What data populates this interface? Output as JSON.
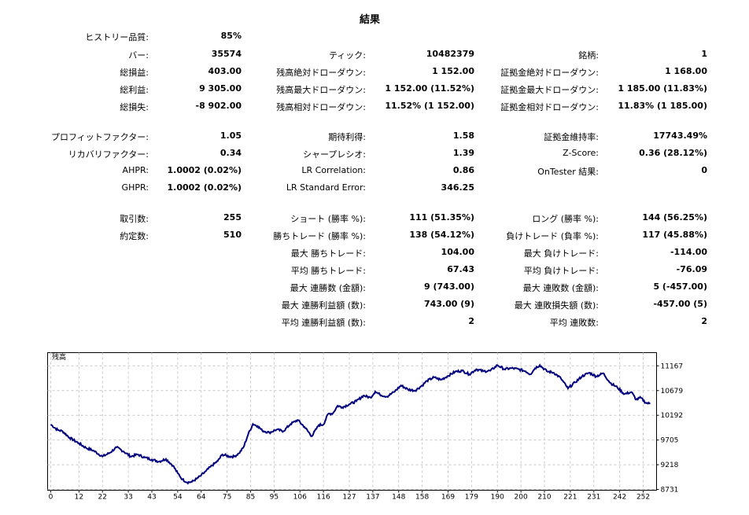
{
  "report": {
    "title": "結果",
    "col1": [
      {
        "label": "ヒストリー品質:",
        "value": "85%",
        "row": 0
      },
      {
        "label": "バー:",
        "value": "35574",
        "row": 1
      },
      {
        "label": "総損益:",
        "value": "403.00",
        "row": 2
      },
      {
        "label": "総利益:",
        "value": "9 305.00",
        "row": 3
      },
      {
        "label": "総損失:",
        "value": "-8 902.00",
        "row": 4
      },
      {
        "label": "プロフィットファクター:",
        "value": "1.05",
        "row": 5
      },
      {
        "label": "リカバリファクター:",
        "value": "0.34",
        "row": 6
      },
      {
        "label": "AHPR:",
        "value": "1.0002 (0.02%)",
        "row": 7
      },
      {
        "label": "GHPR:",
        "value": "1.0002 (0.02%)",
        "row": 8
      },
      {
        "label": "取引数:",
        "value": "255",
        "row": 9
      },
      {
        "label": "約定数:",
        "value": "510",
        "row": 10
      }
    ],
    "col2": [
      {
        "label": "ティック:",
        "value": "10482379",
        "row": 1
      },
      {
        "label": "残高絶対ドローダウン:",
        "value": "1 152.00",
        "row": 2
      },
      {
        "label": "残高最大ドローダウン:",
        "value": "1 152.00 (11.52%)",
        "row": 3
      },
      {
        "label": "残高相対ドローダウン:",
        "value": "11.52% (1 152.00)",
        "row": 4
      },
      {
        "label": "期待利得:",
        "value": "1.58",
        "row": 5
      },
      {
        "label": "シャープレシオ:",
        "value": "1.39",
        "row": 6
      },
      {
        "label": "LR Correlation:",
        "value": "0.86",
        "row": 7
      },
      {
        "label": "LR Standard Error:",
        "value": "346.25",
        "row": 8
      },
      {
        "label": "ショート (勝率 %):",
        "value": "111 (51.35%)",
        "row": 9
      },
      {
        "label": "勝ちトレード (勝率 %):",
        "value": "138 (54.12%)",
        "row": 10
      },
      {
        "label": "最大 勝ちトレード:",
        "value": "104.00",
        "row": 11
      },
      {
        "label": "平均 勝ちトレード:",
        "value": "67.43",
        "row": 12
      },
      {
        "label": "最大 連勝数 (金額):",
        "value": "9 (743.00)",
        "row": 13
      },
      {
        "label": "最大 連勝利益額 (数):",
        "value": "743.00 (9)",
        "row": 14
      },
      {
        "label": "平均 連勝利益額 (数):",
        "value": "2",
        "row": 15
      }
    ],
    "col3": [
      {
        "label": "銘柄:",
        "value": "1",
        "row": 1
      },
      {
        "label": "証拠金絶対ドローダウン:",
        "value": "1 168.00",
        "row": 2
      },
      {
        "label": "証拠金最大ドローダウン:",
        "value": "1 185.00 (11.83%)",
        "row": 3
      },
      {
        "label": "証拠金相対ドローダウン:",
        "value": "11.83% (1 185.00)",
        "row": 4
      },
      {
        "label": "証拠金維持率:",
        "value": "17743.49%",
        "row": 5
      },
      {
        "label": "Z-Score:",
        "value": "0.36 (28.12%)",
        "row": 6
      },
      {
        "label": "OnTester 結果:",
        "value": "0",
        "row": 7
      },
      {
        "label": "ロング (勝率 %):",
        "value": "144 (56.25%)",
        "row": 9
      },
      {
        "label": "負けトレード (負率 %):",
        "value": "117 (45.88%)",
        "row": 10
      },
      {
        "label": "最大 負けトレード:",
        "value": "-114.00",
        "row": 11
      },
      {
        "label": "平均 負けトレード:",
        "value": "-76.09",
        "row": 12
      },
      {
        "label": "最大 連敗数 (金額):",
        "value": "5 (-457.00)",
        "row": 13
      },
      {
        "label": "最大 連敗損失額 (数):",
        "value": "-457.00 (5)",
        "row": 14
      },
      {
        "label": "平均 連敗数:",
        "value": "2",
        "row": 15
      }
    ]
  },
  "chart_data": {
    "type": "line",
    "title": "残高",
    "line_color": "#00007f",
    "grid": true,
    "xlim": [
      0,
      255
    ],
    "ylim": [
      8731,
      11411
    ],
    "x_ticks": [
      "0",
      "12",
      "22",
      "33",
      "43",
      "54",
      "64",
      "75",
      "85",
      "95",
      "106",
      "116",
      "127",
      "137",
      "148",
      "158",
      "169",
      "179",
      "190",
      "200",
      "210",
      "221",
      "231",
      "242",
      "252"
    ],
    "y_ticks": [
      "11167",
      "10679",
      "10192",
      "9705",
      "9218",
      "8731"
    ],
    "keypoints": [
      [
        0,
        10010
      ],
      [
        3,
        9900
      ],
      [
        5,
        9880
      ],
      [
        8,
        9750
      ],
      [
        12,
        9640
      ],
      [
        15,
        9550
      ],
      [
        18,
        9500
      ],
      [
        22,
        9380
      ],
      [
        25,
        9450
      ],
      [
        28,
        9560
      ],
      [
        31,
        9480
      ],
      [
        34,
        9380
      ],
      [
        37,
        9420
      ],
      [
        40,
        9360
      ],
      [
        43,
        9320
      ],
      [
        46,
        9280
      ],
      [
        49,
        9330
      ],
      [
        52,
        9200
      ],
      [
        54,
        9050
      ],
      [
        56,
        8930
      ],
      [
        58,
        8870
      ],
      [
        60,
        8880
      ],
      [
        62,
        8940
      ],
      [
        64,
        9010
      ],
      [
        66,
        9090
      ],
      [
        68,
        9180
      ],
      [
        71,
        9290
      ],
      [
        73,
        9420
      ],
      [
        76,
        9380
      ],
      [
        78,
        9380
      ],
      [
        80,
        9440
      ],
      [
        82,
        9560
      ],
      [
        84,
        9820
      ],
      [
        86,
        10020
      ],
      [
        88,
        9980
      ],
      [
        90,
        9890
      ],
      [
        93,
        9850
      ],
      [
        96,
        9910
      ],
      [
        99,
        9880
      ],
      [
        102,
        10020
      ],
      [
        105,
        10100
      ],
      [
        108,
        9960
      ],
      [
        111,
        9780
      ],
      [
        114,
        10000
      ],
      [
        116,
        10010
      ],
      [
        118,
        10220
      ],
      [
        120,
        10230
      ],
      [
        122,
        10380
      ],
      [
        124,
        10350
      ],
      [
        127,
        10410
      ],
      [
        130,
        10470
      ],
      [
        133,
        10580
      ],
      [
        136,
        10540
      ],
      [
        138,
        10660
      ],
      [
        140,
        10600
      ],
      [
        143,
        10560
      ],
      [
        146,
        10650
      ],
      [
        149,
        10780
      ],
      [
        152,
        10700
      ],
      [
        155,
        10680
      ],
      [
        158,
        10780
      ],
      [
        160,
        10870
      ],
      [
        163,
        10940
      ],
      [
        166,
        10890
      ],
      [
        169,
        10970
      ],
      [
        172,
        11050
      ],
      [
        175,
        11070
      ],
      [
        178,
        11000
      ],
      [
        181,
        11100
      ],
      [
        184,
        11060
      ],
      [
        187,
        11070
      ],
      [
        190,
        11180
      ],
      [
        193,
        11100
      ],
      [
        196,
        11120
      ],
      [
        199,
        11100
      ],
      [
        202,
        11060
      ],
      [
        204,
        11000
      ],
      [
        206,
        11120
      ],
      [
        208,
        11180
      ],
      [
        211,
        11060
      ],
      [
        214,
        11030
      ],
      [
        217,
        10920
      ],
      [
        220,
        10720
      ],
      [
        223,
        10840
      ],
      [
        226,
        10960
      ],
      [
        229,
        11030
      ],
      [
        232,
        10960
      ],
      [
        235,
        11020
      ],
      [
        238,
        10830
      ],
      [
        241,
        10740
      ],
      [
        244,
        10610
      ],
      [
        247,
        10650
      ],
      [
        249,
        10500
      ],
      [
        251,
        10540
      ],
      [
        253,
        10440
      ],
      [
        255,
        10420
      ]
    ]
  }
}
